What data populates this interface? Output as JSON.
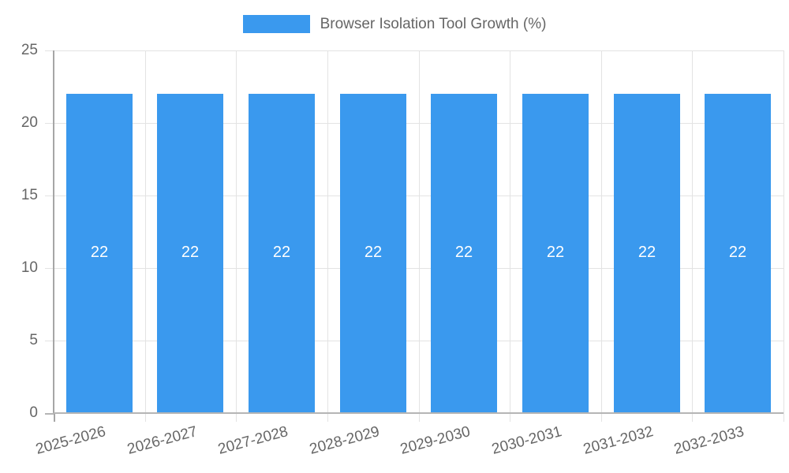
{
  "chart_data": {
    "type": "bar",
    "title": "Browser Isolation Tool Growth (%)",
    "legend": {
      "position": "top",
      "label": "Browser Isolation Tool Growth (%)"
    },
    "categories": [
      "2025-2026",
      "2026-2027",
      "2027-2028",
      "2028-2029",
      "2029-2030",
      "2030-2031",
      "2031-2032",
      "2032-2033"
    ],
    "values": [
      22,
      22,
      22,
      22,
      22,
      22,
      22,
      22
    ],
    "data_labels": [
      "22",
      "22",
      "22",
      "22",
      "22",
      "22",
      "22",
      "22"
    ],
    "xlabel": "",
    "ylabel": "",
    "ylim": [
      0,
      25
    ],
    "ytick_step": 5,
    "yticks": [
      0,
      5,
      10,
      15,
      20,
      25
    ],
    "grid": true,
    "x_tick_rotation_deg": -15,
    "colors": {
      "bar": "#3A99EE",
      "bar_label_text": "#FFFFFF",
      "tick_text": "#666666",
      "gridline": "#E3E3E3",
      "y_axis_line": "#A6A6A6",
      "x_axis_line": "#B5B5B5",
      "background": "#FFFFFF"
    }
  }
}
